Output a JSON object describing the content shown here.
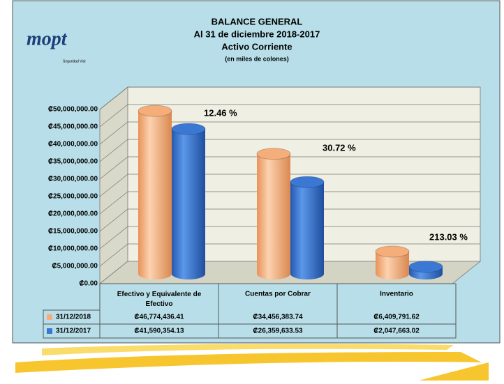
{
  "logo": {
    "name": "mopt",
    "tagline": "Seguridad Vial"
  },
  "chart_data": {
    "type": "bar3d",
    "title": [
      "BALANCE GENERAL",
      "Al 31 de diciembre 2018-2017",
      "Activo Corriente"
    ],
    "subtitle": "(en miles de colones)",
    "categories": [
      "Efectivo y Equivalente de Efectivo",
      "Cuentas por Cobrar",
      "Inventario"
    ],
    "series": [
      {
        "name": "31/12/2018",
        "color": "#f5ae7a",
        "values": [
          46774436.41,
          34456383.74,
          6409791.62
        ],
        "value_labels": [
          "₡46,774,436.41",
          "₡34,456,383.74",
          "₡6,409,791.62"
        ]
      },
      {
        "name": "31/12/2017",
        "color": "#3a78d4",
        "values": [
          41590354.13,
          26359633.53,
          2047663.02
        ],
        "value_labels": [
          "₡41,590,354.13",
          "₡26,359,633.53",
          "₡2,047,663.02"
        ]
      }
    ],
    "annotations": [
      "12.46 %",
      "30.72 %",
      "213.03 %"
    ],
    "ylim": [
      0,
      50000000
    ],
    "yticks": [
      {
        "value": 0,
        "label": "₡0.00"
      },
      {
        "value": 5000000,
        "label": "₡5,000,000.00"
      },
      {
        "value": 10000000,
        "label": "₡10,000,000.00"
      },
      {
        "value": 15000000,
        "label": "₡15,000,000.00"
      },
      {
        "value": 20000000,
        "label": "₡20,000,000.00"
      },
      {
        "value": 25000000,
        "label": "₡25,000,000.00"
      },
      {
        "value": 30000000,
        "label": "₡30,000,000.00"
      },
      {
        "value": 35000000,
        "label": "₡35,000,000.00"
      },
      {
        "value": 40000000,
        "label": "₡40,000,000.00"
      },
      {
        "value": 45000000,
        "label": "₡45,000,000.00"
      },
      {
        "value": 50000000,
        "label": "₡50,000,000.00"
      }
    ],
    "grid": true
  }
}
